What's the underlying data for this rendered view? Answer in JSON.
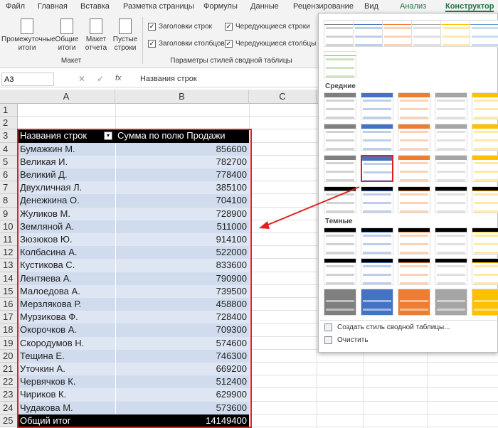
{
  "ribbon": {
    "tabs": [
      "Файл",
      "Главная",
      "Вставка",
      "Разметка страницы",
      "Формулы",
      "Данные",
      "Рецензирование",
      "Вид",
      "Анализ",
      "Конструктор"
    ],
    "layout_buttons": [
      "Промежуточные итоги",
      "Общие итоги",
      "Макет отчета",
      "Пустые строки"
    ],
    "layout_group_label": "Макет",
    "style_options": [
      {
        "label": "Заголовки строк",
        "checked": true
      },
      {
        "label": "Чередующиеся строки",
        "checked": true
      },
      {
        "label": "Заголовки столбцов",
        "checked": true
      },
      {
        "label": "Чередующиеся столбцы",
        "checked": true
      }
    ],
    "style_options_group_label": "Параметры стилей сводной таблицы"
  },
  "formula_bar": {
    "name_box": "A3",
    "fx": "fx",
    "formula": "Названия строк"
  },
  "sheet": {
    "columns": [
      "A",
      "B",
      "C"
    ],
    "row_numbers": [
      1,
      2,
      3,
      4,
      5,
      6,
      7,
      8,
      9,
      10,
      11,
      12,
      13,
      14,
      15,
      16,
      17,
      18,
      19,
      20,
      21,
      22,
      23,
      24,
      25
    ]
  },
  "pivot": {
    "header": [
      "Названия строк",
      "Сумма по полю Продажи"
    ],
    "rows": [
      [
        "Бумажкин М.",
        856600
      ],
      [
        "Великая И.",
        782700
      ],
      [
        "Великий Д.",
        778400
      ],
      [
        "Двухличная Л.",
        385100
      ],
      [
        "Денежкина О.",
        704100
      ],
      [
        "Жуликов М.",
        728900
      ],
      [
        "Земляной А.",
        511000
      ],
      [
        "Зюзюков Ю.",
        914100
      ],
      [
        "Колбасина А.",
        522000
      ],
      [
        "Кустикова С.",
        833600
      ],
      [
        "Лентяева А.",
        790900
      ],
      [
        "Малоедова А.",
        739500
      ],
      [
        "Мерзлякова Р.",
        458800
      ],
      [
        "Мурзикова Ф.",
        728400
      ],
      [
        "Окорочков А.",
        709300
      ],
      [
        "Скородумов Н.",
        574600
      ],
      [
        "Тещина Е.",
        746300
      ],
      [
        "Уточкин А.",
        669200
      ],
      [
        "Червячков К.",
        512400
      ],
      [
        "Чириков К.",
        629900
      ],
      [
        "Чудакова М.",
        573600
      ]
    ],
    "total": [
      "Общий итог",
      14149400
    ]
  },
  "gallery": {
    "sections": [
      "Средние",
      "Темные"
    ],
    "actions": [
      "Создать стиль сводной таблицы...",
      "Очистить"
    ]
  }
}
